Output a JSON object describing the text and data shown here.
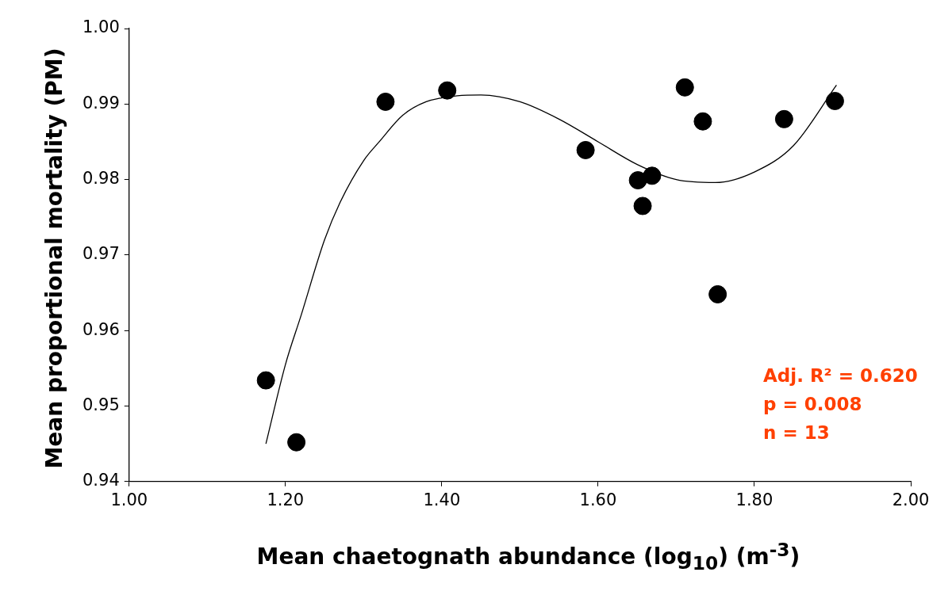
{
  "chart_data": {
    "type": "scatter",
    "xlabel": "Mean chaetognath abundance (log$_{10}$) (m$^{-3}$)",
    "ylabel": "Mean proportional mortality (PM)",
    "annotations": [
      "Adj. R² = 0.620",
      "p = 0.008",
      "n = 13"
    ],
    "series": [
      {
        "color": "#000000",
        "marker": "circle",
        "x": [
          1.175,
          1.214,
          1.328,
          1.407,
          1.584,
          1.651,
          1.657,
          1.669,
          1.711,
          1.734,
          1.753,
          1.838,
          1.903
        ],
        "values": [
          0.9534,
          0.9452,
          0.9903,
          0.9918,
          0.9839,
          0.9799,
          0.9765,
          0.9805,
          0.9922,
          0.9877,
          0.9648,
          0.988,
          0.9904
        ]
      },
      {
        "type": "line",
        "color": "#000000",
        "marker": "none",
        "line_style": "solid",
        "x": [
          1.175,
          1.2,
          1.22,
          1.25,
          1.27,
          1.3,
          1.32,
          1.35,
          1.38,
          1.42,
          1.45,
          1.5,
          1.55,
          1.6,
          1.65,
          1.7,
          1.75,
          1.8,
          1.85,
          1.905
        ],
        "values": [
          0.945,
          0.9555,
          0.962,
          0.972,
          0.977,
          0.9825,
          0.985,
          0.9885,
          0.9903,
          0.9911,
          0.9912,
          0.9903,
          0.988,
          0.985,
          0.982,
          0.98,
          0.9796,
          0.981,
          0.9845,
          0.9925
        ]
      }
    ],
    "xlim": [
      1,
      2
    ],
    "xticks": [
      {
        "value": 1,
        "label": "1.00"
      },
      {
        "value": 1.2,
        "label": "1.20"
      },
      {
        "value": 1.4,
        "label": "1.40"
      },
      {
        "value": 1.6,
        "label": "1.60"
      },
      {
        "value": 1.8,
        "label": "1.80"
      },
      {
        "value": 2,
        "label": "2.00"
      }
    ],
    "ylim": [
      0.94,
      1
    ],
    "yticks": [
      {
        "value": 0.94,
        "label": "0.94"
      },
      {
        "value": 0.95,
        "label": "0.95"
      },
      {
        "value": 0.96,
        "label": "0.96"
      },
      {
        "value": 0.97,
        "label": "0.97"
      },
      {
        "value": 0.98,
        "label": "0.98"
      },
      {
        "value": 0.99,
        "label": "0.99"
      },
      {
        "value": 1,
        "label": "1.00"
      }
    ],
    "grid": false,
    "legend": false
  }
}
